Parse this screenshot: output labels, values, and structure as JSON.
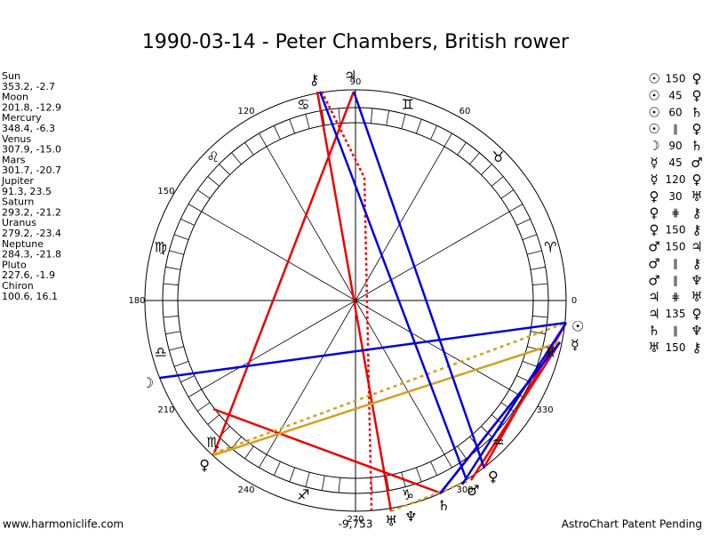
{
  "title": "1990-03-14 - Peter Chambers, British rower",
  "planets": [
    {
      "name": "Sun",
      "glyph": "☉",
      "position": "353.2, -2.7"
    },
    {
      "name": "Moon",
      "glyph": "☽",
      "position": "201.8, -12.9"
    },
    {
      "name": "Mercury",
      "glyph": "☿",
      "position": "348.4, -6.3"
    },
    {
      "name": "Venus",
      "glyph": "♀",
      "position": "307.9, -15.0"
    },
    {
      "name": "Mars",
      "glyph": "♂",
      "position": "301.7, -20.7"
    },
    {
      "name": "Jupiter",
      "glyph": "♃",
      "position": "91.3, 23.5"
    },
    {
      "name": "Saturn",
      "glyph": "♄",
      "position": "293.2, -21.2"
    },
    {
      "name": "Uranus",
      "glyph": "♅",
      "position": "279.2, -23.4"
    },
    {
      "name": "Neptune",
      "glyph": "♆",
      "position": "284.3, -21.8"
    },
    {
      "name": "Pluto",
      "glyph": "♀",
      "position": "227.6, -1.9"
    },
    {
      "name": "Chiron",
      "glyph": "⚷",
      "position": "100.6, 16.1"
    }
  ],
  "signs": [
    "♈",
    "♉",
    "♊",
    "♋",
    "♌",
    "♍",
    "♎",
    "♏",
    "♐",
    "♑",
    "♒",
    "♓"
  ],
  "degree_labels": [
    0,
    60,
    90,
    120,
    150,
    180,
    210,
    240,
    270,
    300,
    330
  ],
  "aspects": [
    [
      "☉",
      "150",
      "♀"
    ],
    [
      "☉",
      "45",
      "♀"
    ],
    [
      "☉",
      "60",
      "♄"
    ],
    [
      "☉",
      "∥",
      "♀"
    ],
    [
      "☽",
      "90",
      "♄"
    ],
    [
      "☿",
      "45",
      "♂"
    ],
    [
      "☿",
      "120",
      "♀"
    ],
    [
      "♀",
      "30",
      "♅"
    ],
    [
      "♀",
      "⋕",
      "⚷"
    ],
    [
      "♀",
      "150",
      "⚷"
    ],
    [
      "♂",
      "150",
      "♃"
    ],
    [
      "♂",
      "∥",
      "⚷"
    ],
    [
      "♂",
      "∥",
      "♆"
    ],
    [
      "♃",
      "⋕",
      "♅"
    ],
    [
      "♃",
      "135",
      "♀"
    ],
    [
      "♄",
      "∥",
      "♆"
    ],
    [
      "♅",
      "150",
      "⚷"
    ]
  ],
  "bottom_value": "-9,753",
  "footer_left": "www.harmoniclife.com",
  "footer_right": "AstroChart Patent Pending"
}
